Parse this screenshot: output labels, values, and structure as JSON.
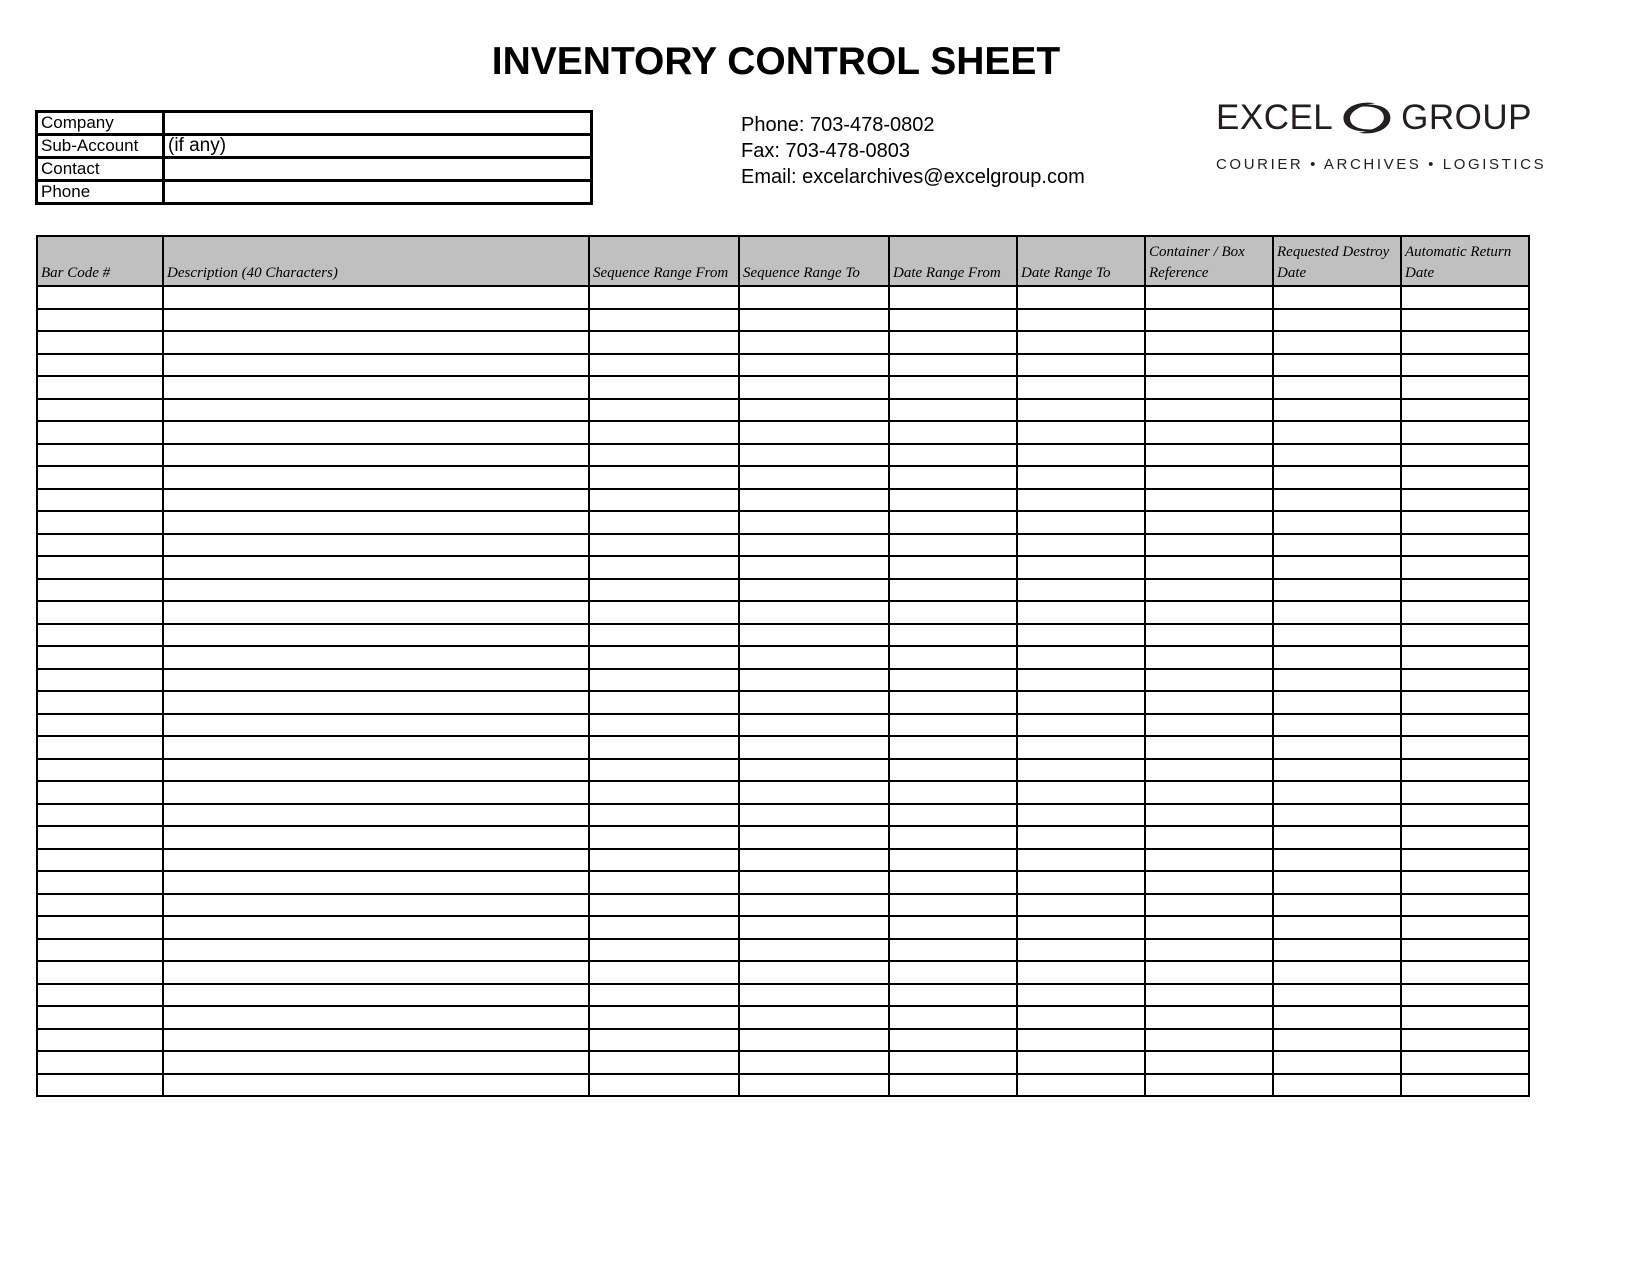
{
  "title": "INVENTORY CONTROL SHEET",
  "info_fields": [
    {
      "label": "Company",
      "value": ""
    },
    {
      "label": "Sub-Account",
      "value": "(if any)"
    },
    {
      "label": "Contact",
      "value": ""
    },
    {
      "label": "Phone",
      "value": ""
    }
  ],
  "contact": {
    "phone": "Phone:  703-478-0802",
    "fax": "Fax:  703-478-0803",
    "email": "Email: excelarchives@excelgroup.com"
  },
  "logo": {
    "left_word": "EXCEL",
    "right_word": "GROUP",
    "tagline": "COURIER • ARCHIVES • LOGISTICS"
  },
  "table": {
    "columns": [
      "Bar Code #",
      "Description (40 Characters)",
      "Sequence Range From",
      "Sequence Range To",
      "Date Range From",
      "Date Range To",
      "Container / Box Reference",
      "Requested Destroy Date",
      "Automatic Return Date"
    ]
  }
}
